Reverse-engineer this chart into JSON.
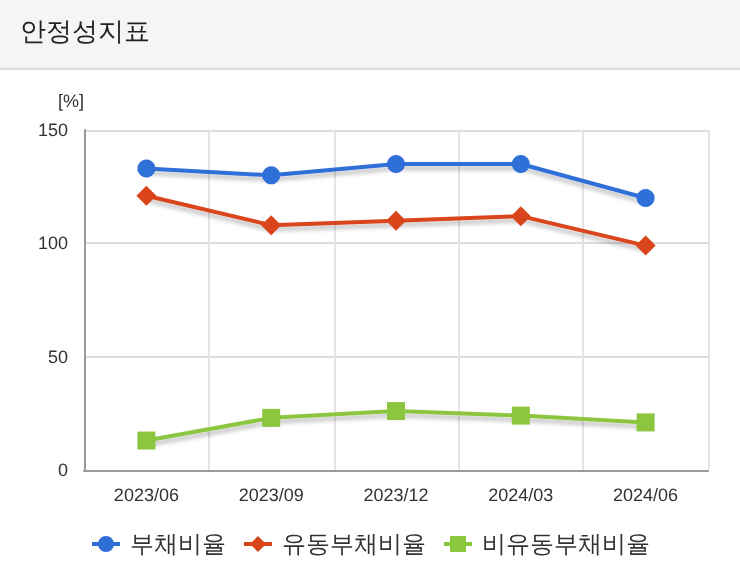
{
  "chart_data": {
    "type": "line",
    "title": "안정성지표",
    "ylabel": "[%]",
    "categories": [
      "2023/06",
      "2023/09",
      "2023/12",
      "2024/03",
      "2024/06"
    ],
    "series": [
      {
        "name": "부채비율",
        "color": "#2e6fd8",
        "marker": "circle",
        "values": [
          133,
          130,
          135,
          135,
          120
        ]
      },
      {
        "name": "유동부채비율",
        "color": "#d9441a",
        "marker": "diamond",
        "values": [
          121,
          108,
          110,
          112,
          99
        ]
      },
      {
        "name": "비유동부채비율",
        "color": "#8cc63f",
        "marker": "square",
        "values": [
          13,
          23,
          26,
          24,
          21
        ]
      }
    ],
    "ylim": [
      0,
      150
    ],
    "yticks": [
      0,
      50,
      100,
      150
    ],
    "grid": true,
    "legend": "bottom",
    "line_style": "solid"
  }
}
